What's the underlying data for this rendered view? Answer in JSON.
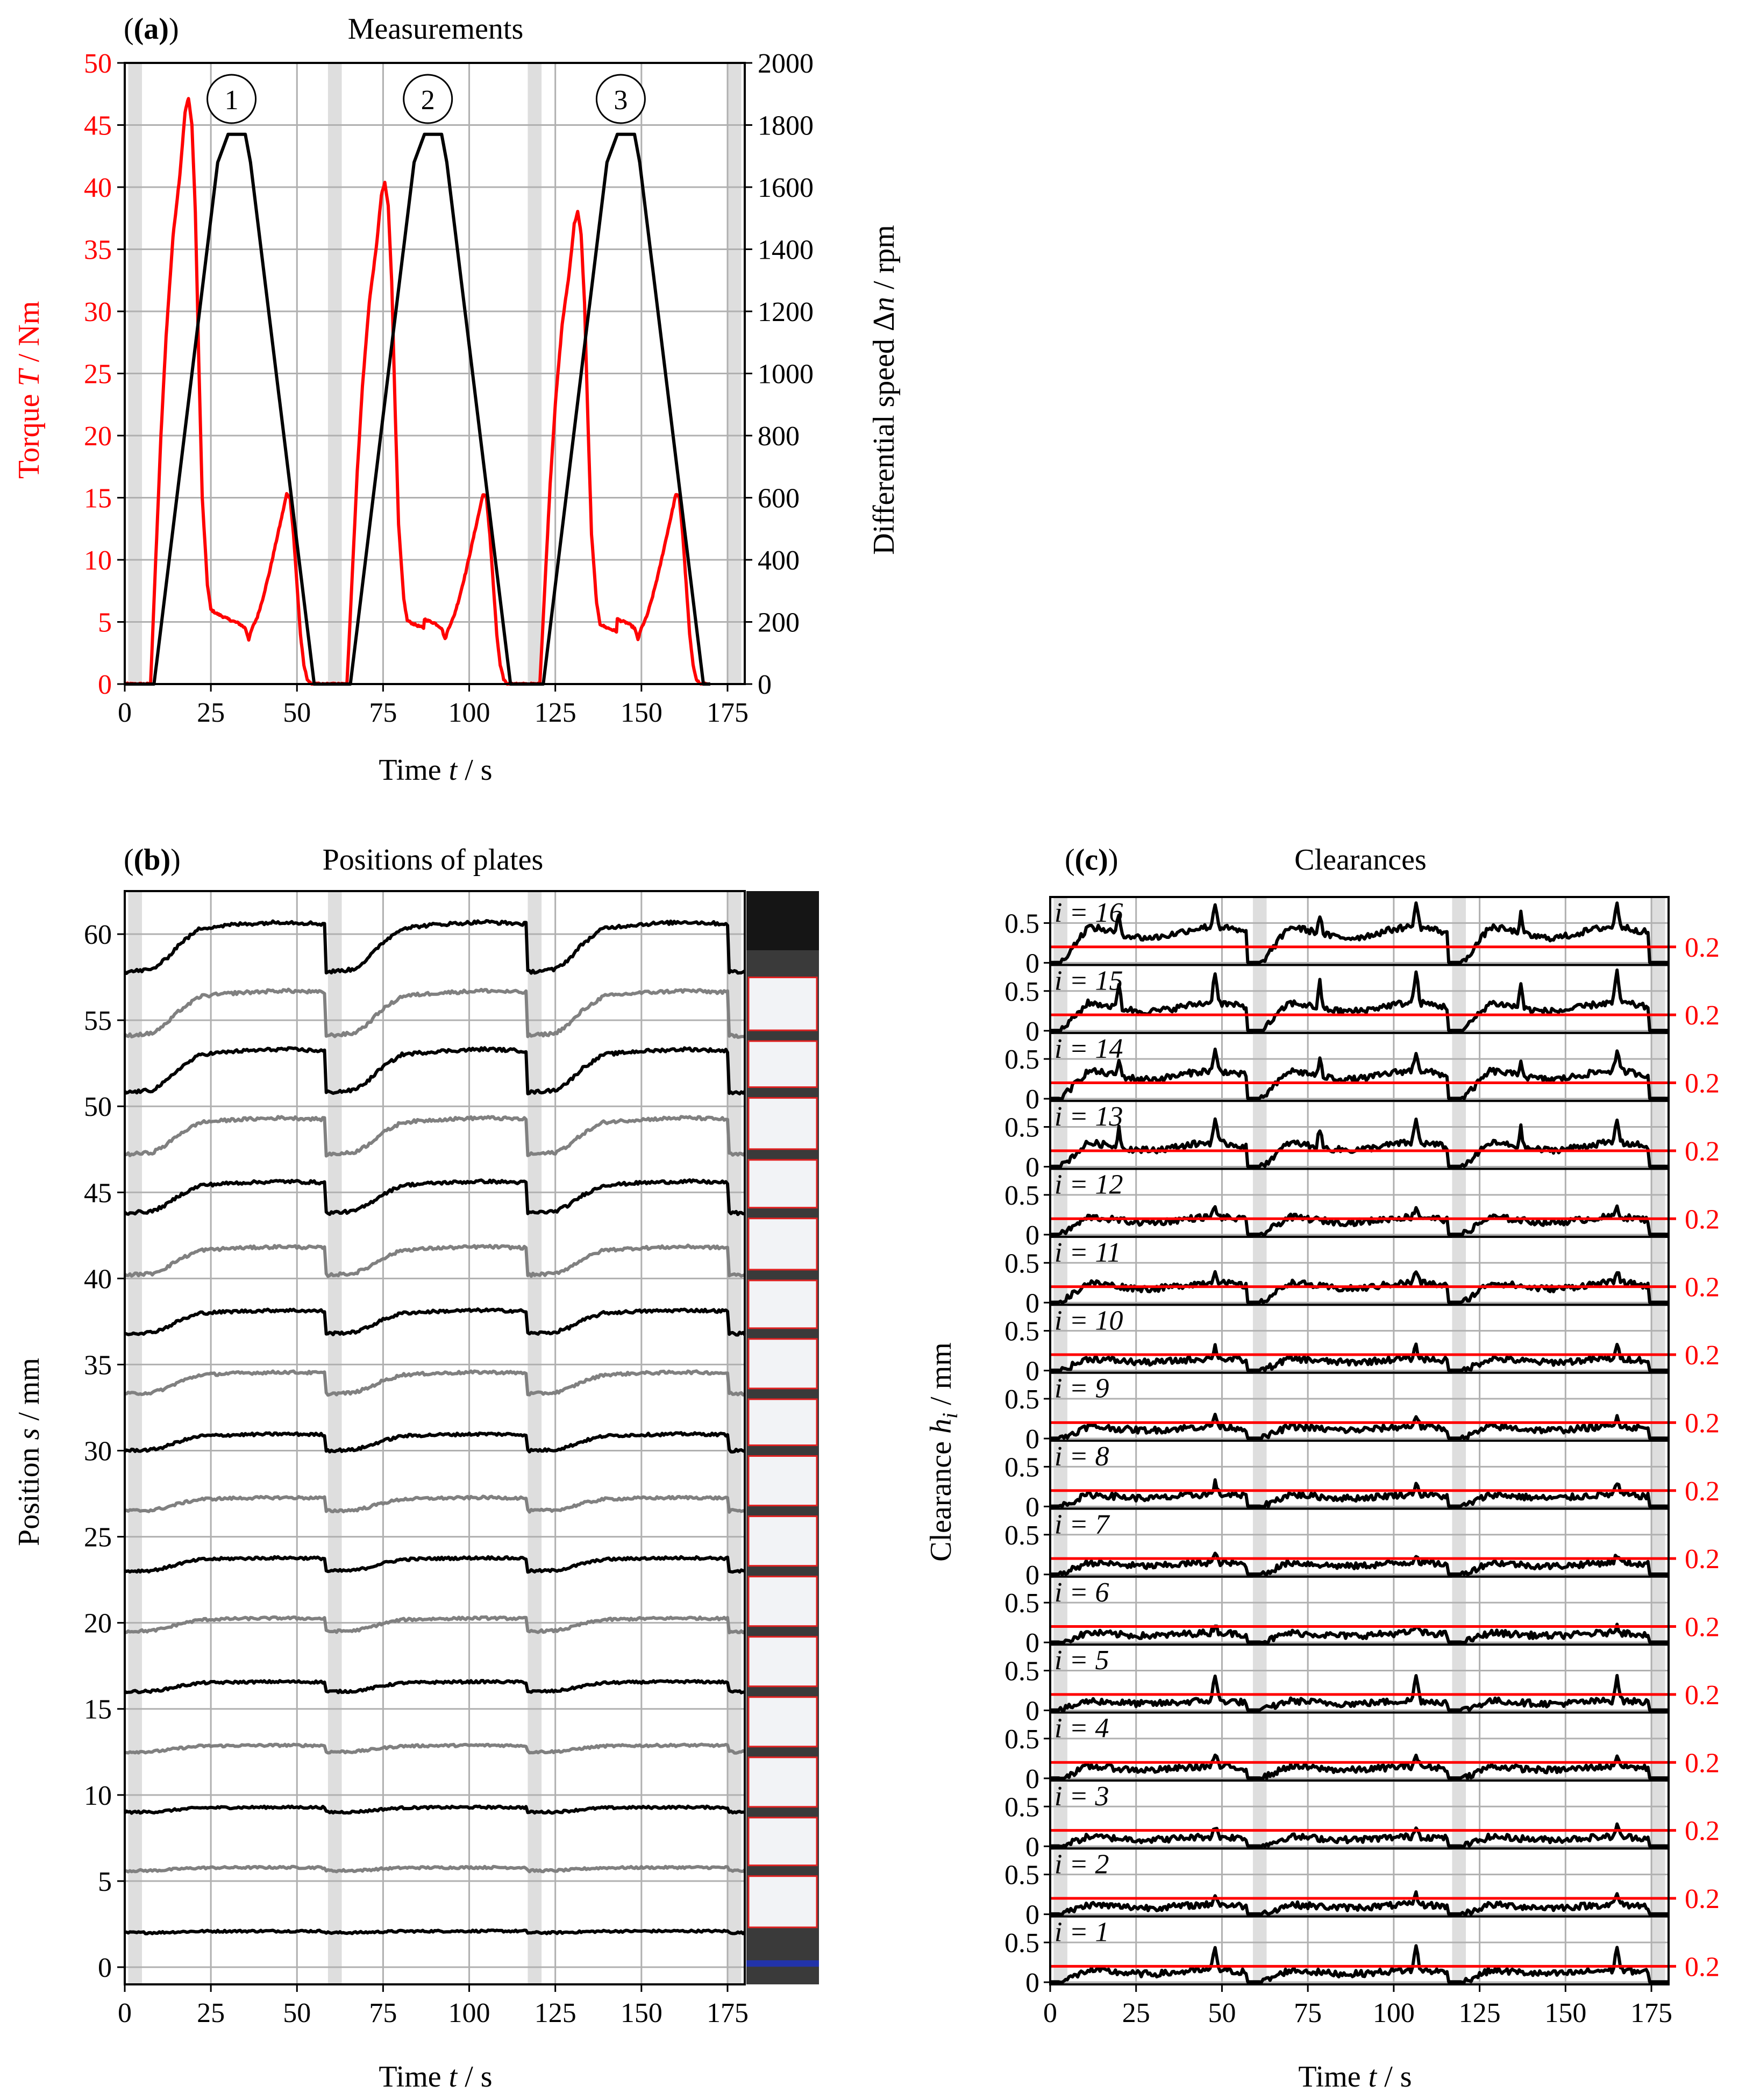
{
  "colors": {
    "torque": "#ff0000",
    "speed": "#000000",
    "grid": "#b0b0b0",
    "shade": "#dedede",
    "plate_dark": "#000000",
    "plate_light": "#808080",
    "ref": "#ff0000"
  },
  "chart_data": [
    {
      "type": "line",
      "panel": "a",
      "label": "(a)",
      "title": "Measurements",
      "xlabel": "Time t / s",
      "ylabel": "Torque T / Nm",
      "ylabel_right": "Differential speed Δn / rpm",
      "xlim": [
        0,
        180
      ],
      "ylim": [
        0,
        50
      ],
      "ylim_right": [
        0,
        2000
      ],
      "xticks": [
        "0",
        "25",
        "50",
        "75",
        "100",
        "125",
        "150",
        "175"
      ],
      "yticks": [
        "0",
        "5",
        "10",
        "15",
        "20",
        "25",
        "30",
        "35",
        "40",
        "45",
        "50"
      ],
      "yticks_right": [
        "0",
        "200",
        "400",
        "600",
        "800",
        "1000",
        "1200",
        "1400",
        "1600",
        "1800",
        "2000"
      ],
      "shaded_intervals": [
        [
          1,
          5
        ],
        [
          59,
          63
        ],
        [
          117,
          121
        ],
        [
          175,
          179
        ]
      ],
      "cycle_labels": [
        "1",
        "2",
        "3"
      ],
      "cycle_label_x": [
        31,
        88,
        144
      ],
      "series": [
        {
          "name": "Torque T",
          "axis": "left",
          "color": "#ff0000",
          "x": [
            0,
            7.5,
            9,
            10.5,
            12,
            14,
            16,
            17.5,
            18.5,
            19.5,
            20.5,
            21.5,
            22.5,
            24,
            25,
            26.5,
            28,
            31,
            33,
            35,
            36,
            37,
            38.5,
            40,
            42,
            44,
            46,
            47,
            48,
            49,
            50,
            51,
            52,
            53,
            54,
            55,
            180
          ],
          "values": [
            0,
            0,
            10,
            20,
            28,
            36,
            41,
            46,
            47.2,
            45,
            38,
            26,
            15,
            8,
            6,
            5.7,
            5.5,
            5.1,
            4.9,
            4.5,
            3.6,
            4.5,
            5.4,
            6.8,
            9,
            11.5,
            14,
            15.3,
            15,
            12,
            8,
            4,
            1.5,
            0.4,
            0,
            0,
            0
          ]
        },
        {
          "name": "Differential speed Δn",
          "axis": "right",
          "color": "#000000",
          "x": [
            0,
            8.5,
            27,
            30,
            35,
            36.5,
            55,
            180
          ],
          "values": [
            0,
            0,
            1680,
            1770,
            1770,
            1680,
            0,
            0
          ]
        }
      ]
    },
    {
      "type": "line",
      "panel": "b",
      "label": "(b)",
      "title": "Positions of plates",
      "xlabel": "Time t / s",
      "ylabel": "Position s / mm",
      "xlim": [
        0,
        180
      ],
      "ylim": [
        -1,
        62.5
      ],
      "xticks": [
        "0",
        "25",
        "50",
        "75",
        "100",
        "125",
        "150",
        "175"
      ],
      "yticks": [
        "0",
        "5",
        "10",
        "15",
        "20",
        "25",
        "30",
        "35",
        "40",
        "45",
        "50",
        "55",
        "60"
      ],
      "shaded_intervals": [
        [
          1,
          5
        ],
        [
          59,
          63
        ],
        [
          117,
          121
        ],
        [
          175,
          179
        ]
      ],
      "plates": [
        {
          "base": 2.0,
          "rise": 0.1,
          "color": "dark"
        },
        {
          "base": 5.6,
          "rise": 0.2,
          "color": "light"
        },
        {
          "base": 9.0,
          "rise": 0.3,
          "color": "dark"
        },
        {
          "base": 12.5,
          "rise": 0.4,
          "color": "light"
        },
        {
          "base": 16.0,
          "rise": 0.6,
          "color": "dark"
        },
        {
          "base": 19.5,
          "rise": 0.8,
          "color": "light"
        },
        {
          "base": 23.0,
          "rise": 0.8,
          "color": "dark"
        },
        {
          "base": 26.5,
          "rise": 0.8,
          "color": "light"
        },
        {
          "base": 30.0,
          "rise": 1.0,
          "color": "dark"
        },
        {
          "base": 33.3,
          "rise": 1.3,
          "color": "light"
        },
        {
          "base": 36.8,
          "rise": 1.4,
          "color": "dark"
        },
        {
          "base": 40.2,
          "rise": 1.7,
          "color": "light"
        },
        {
          "base": 43.8,
          "rise": 1.9,
          "color": "dark"
        },
        {
          "base": 47.2,
          "rise": 2.2,
          "color": "light"
        },
        {
          "base": 50.8,
          "rise": 2.6,
          "color": "dark"
        },
        {
          "base": 54.1,
          "rise": 2.7,
          "color": "light"
        },
        {
          "base": 57.8,
          "rise": 3.0,
          "color": "dark"
        }
      ]
    },
    {
      "type": "line",
      "panel": "c",
      "label": "(c)",
      "title": "Clearances",
      "xlabel": "Time t / s",
      "ylabel": "Clearance h_i / mm",
      "xlim": [
        0,
        180
      ],
      "subplot_ylim": [
        0,
        0.8
      ],
      "subplot_yticks": [
        "0",
        "0.5"
      ],
      "xticks": [
        "0",
        "25",
        "50",
        "75",
        "100",
        "125",
        "150",
        "175"
      ],
      "shaded_intervals": [
        [
          1,
          5
        ],
        [
          59,
          63
        ],
        [
          117,
          121
        ],
        [
          175,
          179
        ]
      ],
      "reference_value": 0.2,
      "reference_label": "0.2",
      "subplots": [
        {
          "label": "i = 16",
          "level": 0.45,
          "spike": 0.75
        },
        {
          "label": "i = 15",
          "level": 0.35,
          "spike": 0.75
        },
        {
          "label": "i = 14",
          "level": 0.35,
          "spike": 0.6
        },
        {
          "label": "i = 13",
          "level": 0.3,
          "spike": 0.6
        },
        {
          "label": "i = 12",
          "level": 0.22,
          "spike": 0.35
        },
        {
          "label": "i = 11",
          "level": 0.25,
          "spike": 0.4
        },
        {
          "label": "i = 10",
          "level": 0.15,
          "spike": 0.3
        },
        {
          "label": "i = 9",
          "level": 0.15,
          "spike": 0.3
        },
        {
          "label": "i = 8",
          "level": 0.15,
          "spike": 0.3
        },
        {
          "label": "i = 7",
          "level": 0.15,
          "spike": 0.25
        },
        {
          "label": "i = 6",
          "level": 0.12,
          "spike": 0.22
        },
        {
          "label": "i = 5",
          "level": 0.12,
          "spike": 0.45
        },
        {
          "label": "i = 4",
          "level": 0.15,
          "spike": 0.3
        },
        {
          "label": "i = 3",
          "level": 0.12,
          "spike": 0.25
        },
        {
          "label": "i = 2",
          "level": 0.12,
          "spike": 0.25
        },
        {
          "label": "i = 1",
          "level": 0.15,
          "spike": 0.45
        }
      ]
    }
  ]
}
